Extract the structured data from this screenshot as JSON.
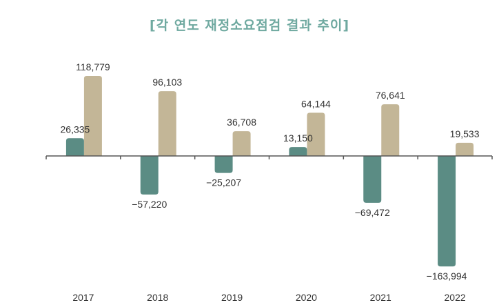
{
  "chart_data": {
    "type": "bar",
    "title": "[각 연도 재정소요점검 결과 추이]",
    "xlabel": "",
    "ylabel": "",
    "categories": [
      "2017",
      "2018",
      "2019",
      "2020",
      "2021",
      "2022"
    ],
    "series": [
      {
        "name": "series-1",
        "color": "#5b8c84",
        "values": [
          26335,
          -57220,
          -25207,
          13150,
          -69472,
          -163994
        ]
      },
      {
        "name": "series-2",
        "color": "#c3b697",
        "values": [
          118779,
          96103,
          36708,
          64144,
          76641,
          19533
        ]
      }
    ],
    "data_labels": [
      [
        "26,335",
        "-57,220",
        "-25,207",
        "13,150",
        "-69,472",
        "-163,994"
      ],
      [
        "118,779",
        "96,103",
        "36,708",
        "64,144",
        "76,641",
        "19,533"
      ]
    ],
    "ylim": [
      -170000,
      130000
    ],
    "grid": false,
    "legend": "none"
  }
}
